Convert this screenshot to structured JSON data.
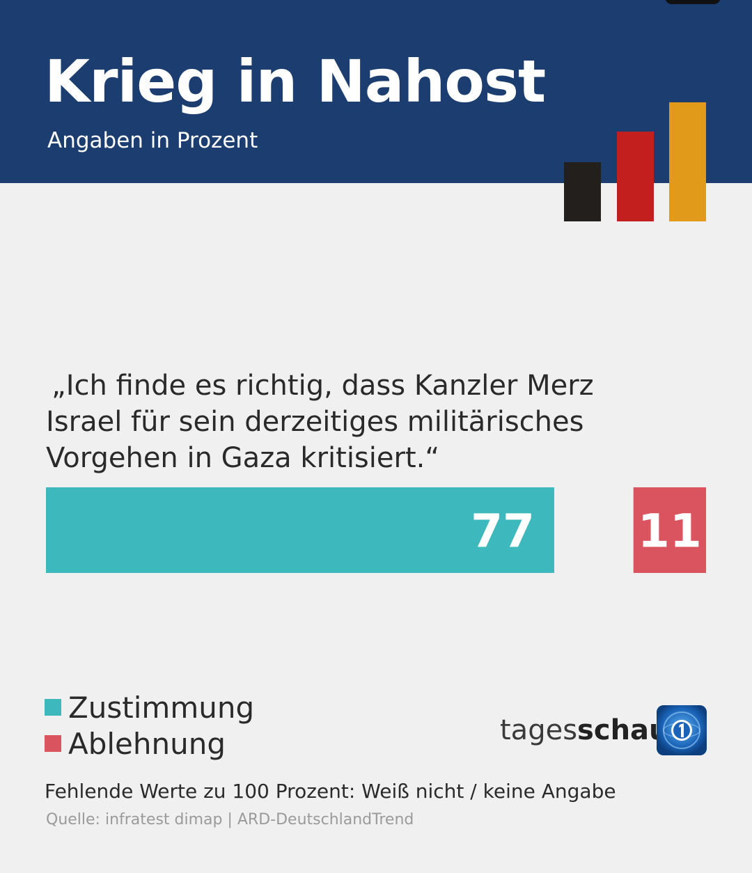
{
  "header": {
    "title": "Krieg in Nahost",
    "subtitle": "Angaben in Prozent"
  },
  "question": {
    "line1": "„Ich finde es richtig, dass Kanzler Merz",
    "line2": "Israel für sein derzeitiges militärisches",
    "line3": "Vorgehen in Gaza kritisiert.“"
  },
  "chart_data": {
    "type": "bar",
    "orientation": "horizontal",
    "categories": [
      "„Ich finde es richtig, dass Kanzler Merz Israel für sein derzeitiges militärisches Vorgehen in Gaza kritisiert.“"
    ],
    "series": [
      {
        "name": "Zustimmung",
        "values": [
          77
        ],
        "color": "#3db8bd"
      },
      {
        "name": "Ablehnung",
        "values": [
          11
        ],
        "color": "#d9545f"
      }
    ],
    "unit": "Prozent",
    "data_labels": true,
    "legend_position": "bottom-left"
  },
  "legend": {
    "items": [
      {
        "label": "Zustimmung",
        "color": "#3db8bd"
      },
      {
        "label": "Ablehnung",
        "color": "#d9545f"
      }
    ]
  },
  "brand": {
    "prefix": "tages",
    "bold": "schau",
    "icon": "tagesschau-logo-icon"
  },
  "logo_bars": {
    "colors": [
      "#231f1c",
      "#c41f1f",
      "#e29a1a"
    ]
  },
  "footnote": "Fehlende Werte zu 100 Prozent: Weiß nicht / keine Angabe",
  "source": "Quelle: infratest dimap | ARD-DeutschlandTrend",
  "colors": {
    "header_bg": "#1b3d6f",
    "page_bg": "#f0f0f0"
  }
}
